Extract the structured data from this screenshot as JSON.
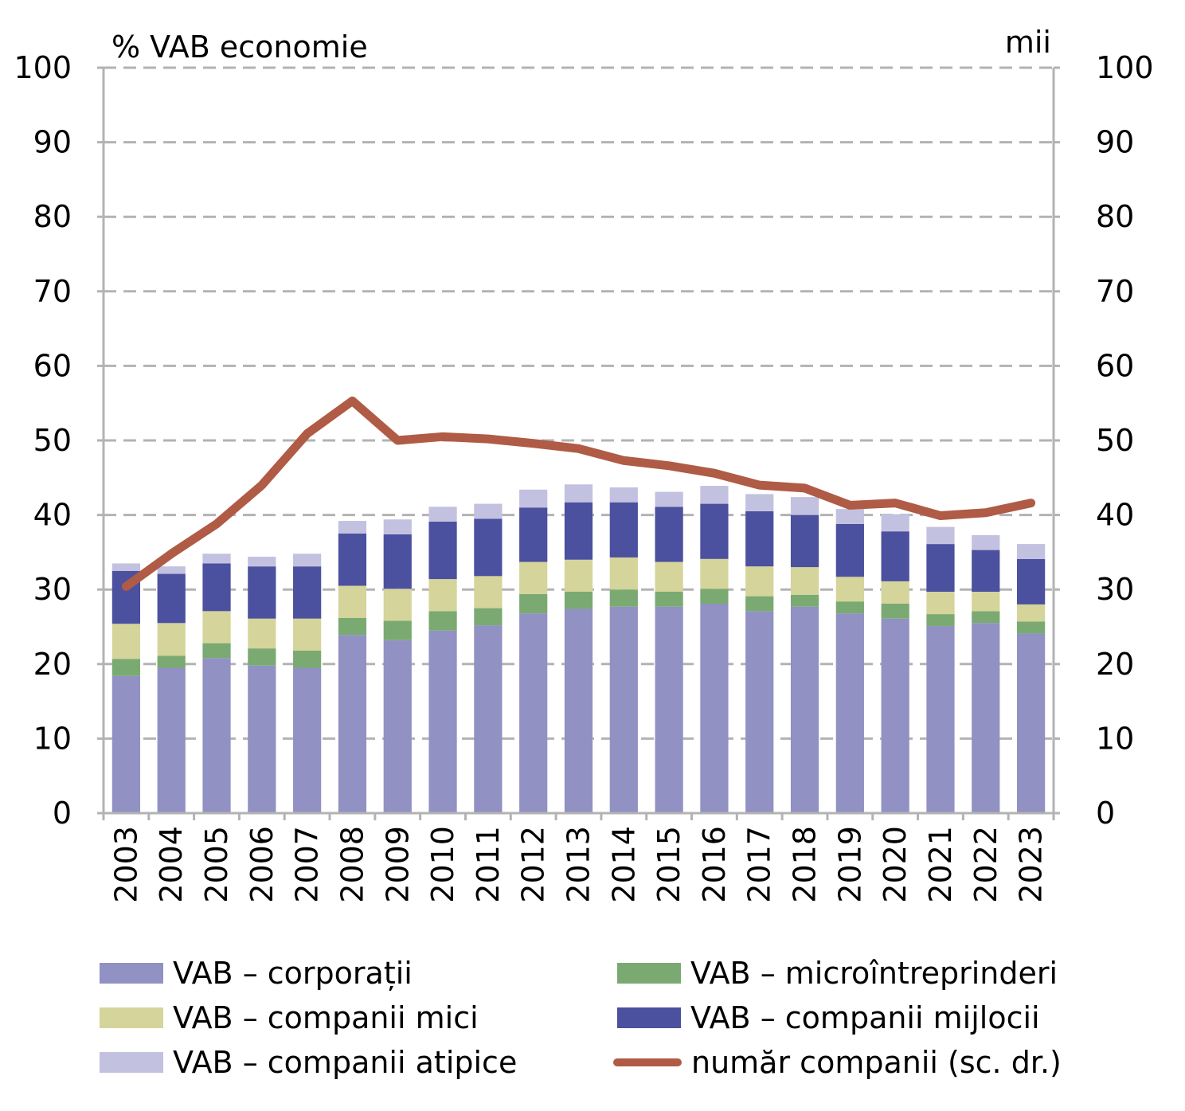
{
  "chart_data": {
    "type": "bar",
    "stacked": true,
    "title": "",
    "ylabel_left": "% VAB economie",
    "ylabel_right": "mii",
    "ylim": [
      0,
      100
    ],
    "ylim_right": [
      0,
      100
    ],
    "yticks": [
      0,
      10,
      20,
      30,
      40,
      50,
      60,
      70,
      80,
      90,
      100
    ],
    "grid": true,
    "legend_position": "bottom",
    "categories": [
      "2003",
      "2004",
      "2005",
      "2006",
      "2007",
      "2008",
      "2009",
      "2010",
      "2011",
      "2012",
      "2013",
      "2014",
      "2015",
      "2016",
      "2017",
      "2018",
      "2019",
      "2020",
      "2021",
      "2022",
      "2023"
    ],
    "series": [
      {
        "name": "VAB – corporații",
        "kind": "bar",
        "color": "#9191c3",
        "values": [
          18.4,
          19.5,
          20.8,
          19.8,
          19.5,
          23.9,
          23.2,
          24.5,
          25.2,
          26.8,
          27.4,
          27.7,
          27.7,
          28.1,
          27.1,
          27.7,
          26.8,
          26.1,
          25.1,
          25.5,
          24.1
        ]
      },
      {
        "name": "VAB – microîntreprinderi",
        "kind": "bar",
        "color": "#7aaa72",
        "values": [
          2.3,
          1.6,
          2.0,
          2.3,
          2.3,
          2.3,
          2.6,
          2.6,
          2.3,
          2.6,
          2.3,
          2.3,
          2.0,
          2.0,
          2.0,
          1.6,
          1.6,
          2.0,
          1.6,
          1.6,
          1.6
        ]
      },
      {
        "name": "VAB – companii mici",
        "kind": "bar",
        "color": "#d5d49a",
        "values": [
          4.7,
          4.4,
          4.3,
          4.0,
          4.3,
          4.3,
          4.3,
          4.3,
          4.3,
          4.3,
          4.3,
          4.3,
          4.0,
          4.0,
          4.0,
          3.7,
          3.3,
          3.0,
          3.0,
          2.6,
          2.3
        ]
      },
      {
        "name": "VAB – companii mijlocii",
        "kind": "bar",
        "color": "#4b509f",
        "values": [
          7.1,
          6.6,
          6.4,
          7.0,
          7.0,
          7.0,
          7.3,
          7.7,
          7.7,
          7.3,
          7.7,
          7.4,
          7.4,
          7.4,
          7.4,
          7.0,
          7.1,
          6.7,
          6.4,
          5.6,
          6.1
        ]
      },
      {
        "name": "VAB – companii atipice",
        "kind": "bar",
        "color": "#c3c1e0",
        "values": [
          1.0,
          1.0,
          1.3,
          1.3,
          1.7,
          1.7,
          2.0,
          2.0,
          2.0,
          2.4,
          2.4,
          2.0,
          2.0,
          2.4,
          2.3,
          2.4,
          2.0,
          2.3,
          2.3,
          2.0,
          2.0
        ]
      },
      {
        "name": "număr companii (sc. dr.)",
        "kind": "line",
        "axis": "right",
        "color": "#b05b45",
        "values": [
          30.4,
          34.8,
          38.8,
          44.0,
          50.9,
          55.3,
          50.0,
          50.5,
          50.2,
          49.6,
          48.9,
          47.3,
          46.6,
          45.6,
          44.0,
          43.6,
          41.3,
          41.6,
          39.9,
          40.3,
          41.6
        ]
      }
    ]
  },
  "legend": [
    {
      "label": "VAB – corporații",
      "color": "#9191c3",
      "type": "swatch"
    },
    {
      "label": "VAB – microîntreprinderi",
      "color": "#7aaa72",
      "type": "swatch"
    },
    {
      "label": "VAB – companii mici",
      "color": "#d5d49a",
      "type": "swatch"
    },
    {
      "label": "VAB – companii mijlocii",
      "color": "#4b509f",
      "type": "swatch"
    },
    {
      "label": "VAB – companii atipice",
      "color": "#c3c1e0",
      "type": "swatch"
    },
    {
      "label": "număr companii (sc. dr.)",
      "color": "#b05b45",
      "type": "line"
    }
  ]
}
